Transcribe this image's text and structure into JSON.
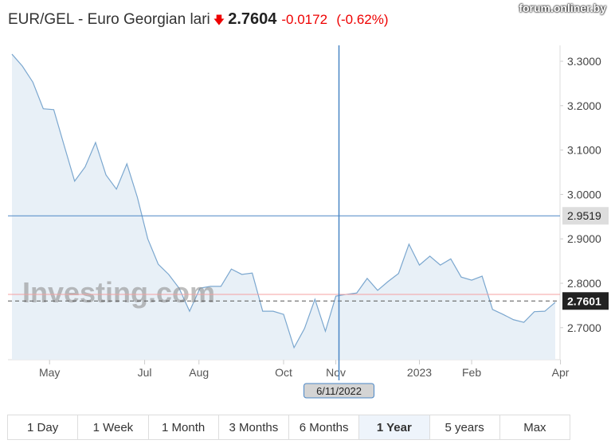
{
  "header": {
    "pair": "EUR/GEL - Euro Georgian lari",
    "direction_icon": "arrow-down-icon",
    "price": "2.7604",
    "change": "-0.0172",
    "change_pct": "(-0.62%)",
    "negative_color": "#ee0000"
  },
  "chart_data": {
    "type": "area",
    "ylim": [
      2.62,
      3.33
    ],
    "y_ticks": [
      "3.3000",
      "3.2000",
      "3.1000",
      "3.0000",
      "2.9000",
      "2.8000",
      "2.7000"
    ],
    "x_ticks": [
      {
        "label": "May",
        "at_index": 3.6
      },
      {
        "label": "Jul",
        "at_index": 12.7
      },
      {
        "label": "Aug",
        "at_index": 17.9
      },
      {
        "label": "Oct",
        "at_index": 26.0
      },
      {
        "label": "Nov",
        "at_index": 31.0
      },
      {
        "label": "2023",
        "at_index": 39.0
      },
      {
        "label": "Feb",
        "at_index": 44.0
      },
      {
        "label": "Apr",
        "at_index": 52.5
      }
    ],
    "values": [
      3.316,
      3.289,
      3.253,
      3.193,
      3.191,
      3.11,
      3.03,
      3.062,
      3.117,
      3.044,
      3.012,
      3.069,
      2.994,
      2.9,
      2.843,
      2.82,
      2.789,
      2.737,
      2.789,
      2.793,
      2.793,
      2.832,
      2.82,
      2.823,
      2.737,
      2.737,
      2.73,
      2.655,
      2.698,
      2.764,
      2.692,
      2.771,
      2.775,
      2.778,
      2.811,
      2.784,
      2.804,
      2.822,
      2.888,
      2.841,
      2.861,
      2.841,
      2.855,
      2.814,
      2.807,
      2.816,
      2.741,
      2.73,
      2.718,
      2.712,
      2.736,
      2.737,
      2.757
    ],
    "line_color": "#7ba7cf",
    "fill_color": "#e8f0f7",
    "crosshair": {
      "date": "6/11/2022",
      "value": "2.9519",
      "at_index": 31.3
    },
    "last_value": "2.7601",
    "reference_line": 2.775,
    "watermark": "Investing.com"
  },
  "ranges": [
    {
      "label": "1 Day"
    },
    {
      "label": "1 Week"
    },
    {
      "label": "1 Month"
    },
    {
      "label": "3 Months"
    },
    {
      "label": "6 Months"
    },
    {
      "label": "1 Year",
      "active": true
    },
    {
      "label": "5 years"
    },
    {
      "label": "Max"
    }
  ],
  "overlay_watermark": "forum.onliner.by"
}
